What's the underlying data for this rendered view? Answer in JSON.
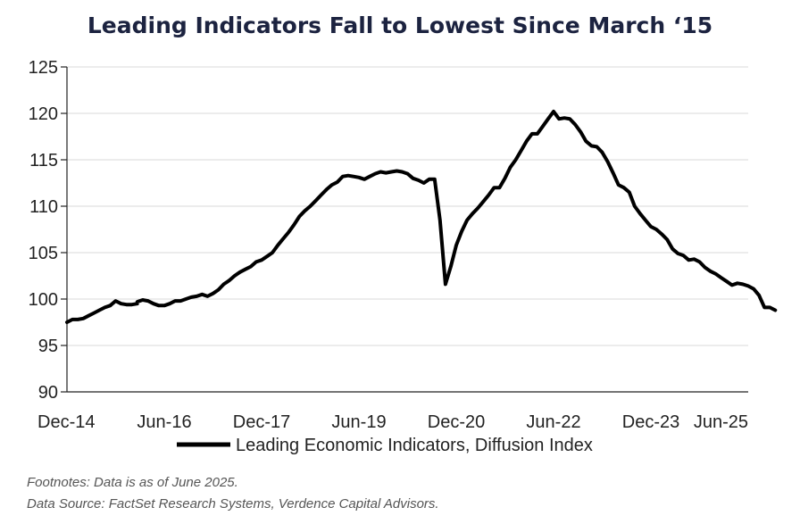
{
  "chart_data": {
    "type": "line",
    "title": "Leading Indicators Fall to Lowest Since March ‘15",
    "xlabel": "",
    "ylabel": "",
    "ylim": [
      90,
      125
    ],
    "yticks": [
      "90",
      "95",
      "100",
      "105",
      "110",
      "115",
      "120",
      "125"
    ],
    "xtick_labels": [
      "Dec-14",
      "Jun-16",
      "Dec-17",
      "Jun-19",
      "Dec-20",
      "Jun-22",
      "Dec-23",
      "Jun-25"
    ],
    "x_start": "2014-12",
    "x_end": "2025-06",
    "grid": true,
    "legend_position": "bottom",
    "series": [
      {
        "name": "Leading Economic Indicators, Diffusion Index",
        "color": "#000000",
        "points": [
          [
            "2014-12",
            97.5
          ],
          [
            "2015-01",
            97.8
          ],
          [
            "2015-02",
            97.8
          ],
          [
            "2015-03",
            97.9
          ],
          [
            "2015-04",
            98.2
          ],
          [
            "2015-05",
            98.5
          ],
          [
            "2015-06",
            98.8
          ],
          [
            "2015-07",
            99.1
          ],
          [
            "2015-08",
            99.3
          ],
          [
            "2015-09",
            99.8
          ],
          [
            "2015-10",
            99.5
          ],
          [
            "2015-11",
            99.4
          ],
          [
            "2015-12",
            99.4
          ],
          [
            "2015-13",
            99.5
          ],
          [
            "2016-01",
            99.7
          ],
          [
            "2016-02",
            99.9
          ],
          [
            "2016-03",
            99.8
          ],
          [
            "2016-04",
            99.5
          ],
          [
            "2016-05",
            99.3
          ],
          [
            "2016-06",
            99.3
          ],
          [
            "2016-07",
            99.5
          ],
          [
            "2016-08",
            99.8
          ],
          [
            "2016-09",
            99.8
          ],
          [
            "2016-10",
            100.0
          ],
          [
            "2016-11",
            100.2
          ],
          [
            "2016-12",
            100.3
          ],
          [
            "2017-01",
            100.5
          ],
          [
            "2017-02",
            100.3
          ],
          [
            "2017-03",
            100.6
          ],
          [
            "2017-04",
            101.0
          ],
          [
            "2017-05",
            101.6
          ],
          [
            "2017-06",
            102.0
          ],
          [
            "2017-07",
            102.5
          ],
          [
            "2017-08",
            102.9
          ],
          [
            "2017-09",
            103.2
          ],
          [
            "2017-10",
            103.5
          ],
          [
            "2017-11",
            104.0
          ],
          [
            "2017-12",
            104.2
          ],
          [
            "2018-01",
            104.6
          ],
          [
            "2018-02",
            105.0
          ],
          [
            "2018-03",
            105.8
          ],
          [
            "2018-04",
            106.5
          ],
          [
            "2018-05",
            107.2
          ],
          [
            "2018-06",
            108.0
          ],
          [
            "2018-07",
            108.9
          ],
          [
            "2018-08",
            109.5
          ],
          [
            "2018-09",
            110.0
          ],
          [
            "2018-10",
            110.6
          ],
          [
            "2018-11",
            111.2
          ],
          [
            "2018-12",
            111.8
          ],
          [
            "2019-01",
            112.3
          ],
          [
            "2019-02",
            112.6
          ],
          [
            "2019-03",
            113.2
          ],
          [
            "2019-04",
            113.3
          ],
          [
            "2019-05",
            113.2
          ],
          [
            "2019-06",
            113.1
          ],
          [
            "2019-07",
            112.9
          ],
          [
            "2019-08",
            113.2
          ],
          [
            "2019-09",
            113.5
          ],
          [
            "2019-10",
            113.7
          ],
          [
            "2019-11",
            113.6
          ],
          [
            "2019-12",
            113.7
          ],
          [
            "2020-01",
            113.8
          ],
          [
            "2020-02",
            113.7
          ],
          [
            "2020-03",
            113.5
          ],
          [
            "2020-04",
            113.0
          ],
          [
            "2020-05",
            112.8
          ],
          [
            "2020-06",
            112.5
          ],
          [
            "2020-07",
            112.9
          ],
          [
            "2020-08",
            112.9
          ],
          [
            "2020-09",
            108.5
          ],
          [
            "2020-10",
            101.6
          ],
          [
            "2020-11",
            103.5
          ],
          [
            "2020-12",
            105.8
          ],
          [
            "2021-01",
            107.3
          ],
          [
            "2021-02",
            108.5
          ],
          [
            "2021-03",
            109.2
          ],
          [
            "2021-04",
            109.8
          ],
          [
            "2021-05",
            110.5
          ],
          [
            "2021-06",
            111.2
          ],
          [
            "2021-07",
            112.0
          ],
          [
            "2021-08",
            112.0
          ],
          [
            "2021-09",
            113.0
          ],
          [
            "2021-10",
            114.2
          ],
          [
            "2021-11",
            115.0
          ],
          [
            "2021-12",
            116.0
          ],
          [
            "2022-01",
            117.0
          ],
          [
            "2022-02",
            117.8
          ],
          [
            "2022-03",
            117.8
          ],
          [
            "2022-04",
            118.6
          ],
          [
            "2022-05",
            119.4
          ],
          [
            "2022-06",
            120.2
          ],
          [
            "2022-07",
            119.4
          ],
          [
            "2022-08",
            119.5
          ],
          [
            "2022-09",
            119.4
          ],
          [
            "2022-10",
            118.8
          ],
          [
            "2022-11",
            118.0
          ],
          [
            "2022-12",
            117.0
          ],
          [
            "2023-01",
            116.5
          ],
          [
            "2023-02",
            116.4
          ],
          [
            "2023-03",
            115.8
          ],
          [
            "2023-04",
            114.8
          ],
          [
            "2023-05",
            113.6
          ],
          [
            "2023-06",
            112.3
          ],
          [
            "2023-07",
            112.0
          ],
          [
            "2023-08",
            111.5
          ],
          [
            "2023-09",
            110.0
          ],
          [
            "2023-10",
            109.2
          ],
          [
            "2023-11",
            108.5
          ],
          [
            "2023-12",
            107.8
          ],
          [
            "2024-01",
            107.5
          ],
          [
            "2024-02",
            107.0
          ],
          [
            "2024-03",
            106.4
          ],
          [
            "2024-04",
            105.4
          ],
          [
            "2024-05",
            104.9
          ],
          [
            "2024-06",
            104.7
          ],
          [
            "2024-07",
            104.2
          ],
          [
            "2024-08",
            104.3
          ],
          [
            "2024-09",
            104.0
          ],
          [
            "2024-10",
            103.4
          ],
          [
            "2024-11",
            103.0
          ],
          [
            "2024-12",
            102.7
          ],
          [
            "2025-01",
            102.3
          ],
          [
            "2025-02",
            101.9
          ],
          [
            "2025-03",
            101.5
          ],
          [
            "2025-04",
            101.7
          ],
          [
            "2025-05",
            101.6
          ],
          [
            "2025-06",
            101.4
          ],
          [
            "2025-07",
            101.1
          ],
          [
            "2025-08",
            100.4
          ],
          [
            "2025-09",
            99.1
          ],
          [
            "2025-10",
            99.1
          ],
          [
            "2025-11",
            98.8
          ]
        ]
      }
    ]
  },
  "footnotes": {
    "line1": "Footnotes: Data is as of June 2025.",
    "line2": "Data Source: FactSet Research Systems, Verdence Capital Advisors."
  }
}
